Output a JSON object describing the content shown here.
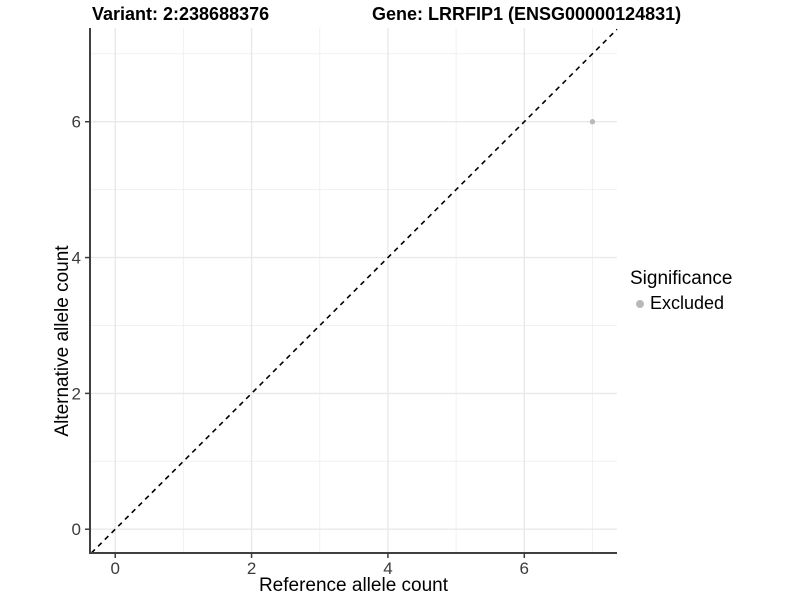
{
  "titles": {
    "variant": "Variant: 2:238688376",
    "gene": "Gene: LRRFIP1 (ENSG00000124831)"
  },
  "legend": {
    "title": "Significance",
    "items": [
      {
        "label": "Excluded",
        "color": "#b9b9b9"
      }
    ]
  },
  "chart_data": {
    "type": "scatter",
    "title": "Variant: 2:238688376    Gene: LRRFIP1 (ENSG00000124831)",
    "xlabel": "Reference allele count",
    "ylabel": "Alternative allele count",
    "xlim": [
      -0.37,
      7.36
    ],
    "ylim": [
      -0.35,
      7.38
    ],
    "x_ticks_major": [
      0,
      2,
      4,
      6
    ],
    "x_ticks_minor": [
      1,
      3,
      5,
      7
    ],
    "y_ticks_major": [
      0,
      2,
      4,
      6
    ],
    "y_ticks_minor": [
      1,
      3,
      5,
      7
    ],
    "grid": true,
    "legend_position": "right",
    "reference_line": {
      "type": "identity",
      "slope": 1,
      "intercept": 0,
      "style": "dashed",
      "color": "#000000"
    },
    "series": [
      {
        "name": "Excluded",
        "color": "#b9b9b9",
        "points": [
          {
            "x": 7,
            "y": 6
          }
        ]
      }
    ]
  },
  "colors": {
    "background": "#ffffff",
    "grid_major": "#e9e9e9",
    "grid_minor": "#f1f1f1",
    "axis_line": "#404040",
    "tick_mark": "#3c3c3c",
    "tick_label": "#3c3c3c",
    "text": "#000000"
  }
}
